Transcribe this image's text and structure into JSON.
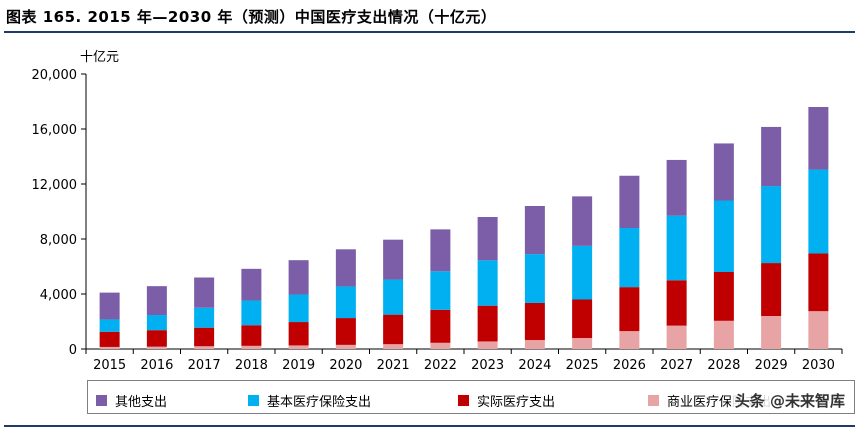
{
  "header": {
    "title": "图表 165. 2015 年—2030 年（预测）中国医疗支出情况（十亿元）",
    "unit": "十亿元"
  },
  "watermark": {
    "text": "头条 @未来智库"
  },
  "colors": {
    "other": "#7b5ea7",
    "basic_insurance": "#00b0f0",
    "out_of_pocket": "#c00000",
    "commercial": "#e8a4a4",
    "axis": "#000000"
  },
  "chart_data": {
    "type": "bar",
    "stacked": true,
    "title": "2015 年—2030 年（预测）中国医疗支出情况（十亿元）",
    "ylabel": "十亿元",
    "xlabel": "",
    "ylim": [
      0,
      20000
    ],
    "yticks": [
      0,
      4000,
      8000,
      12000,
      16000,
      20000
    ],
    "ytick_labels": [
      "0",
      "4,000",
      "8,000",
      "12,000",
      "16,000",
      "20,000"
    ],
    "categories": [
      "2015",
      "2016",
      "2017",
      "2018",
      "2019",
      "2020",
      "2021",
      "2022",
      "2023",
      "2024",
      "2025",
      "2026",
      "2027",
      "2028",
      "2029",
      "2030"
    ],
    "series": [
      {
        "name": "商业医疗保险支出",
        "key": "commercial",
        "values": [
          150,
          170,
          200,
          230,
          260,
          300,
          350,
          450,
          550,
          650,
          800,
          1300,
          1700,
          2050,
          2400,
          2750
        ]
      },
      {
        "name": "实际医疗支出",
        "key": "out_of_pocket",
        "values": [
          1100,
          1200,
          1350,
          1500,
          1700,
          1950,
          2150,
          2400,
          2600,
          2700,
          2800,
          3200,
          3300,
          3550,
          3850,
          4200
        ]
      },
      {
        "name": "基本医疗保险支出",
        "key": "basic_insurance",
        "values": [
          900,
          1100,
          1450,
          1800,
          2000,
          2300,
          2550,
          2800,
          3300,
          3550,
          3900,
          4300,
          4700,
          5200,
          5600,
          6100
        ]
      },
      {
        "name": "其他支出",
        "key": "other",
        "values": [
          1950,
          2100,
          2200,
          2300,
          2500,
          2700,
          2900,
          3050,
          3150,
          3500,
          3600,
          3800,
          4050,
          4150,
          4300,
          4550
        ]
      }
    ],
    "legend": {
      "position": "bottom",
      "entries": [
        "其他支出",
        "基本医疗保险支出",
        "实际医疗支出",
        "商业医疗保险支出"
      ]
    },
    "grid": false
  }
}
